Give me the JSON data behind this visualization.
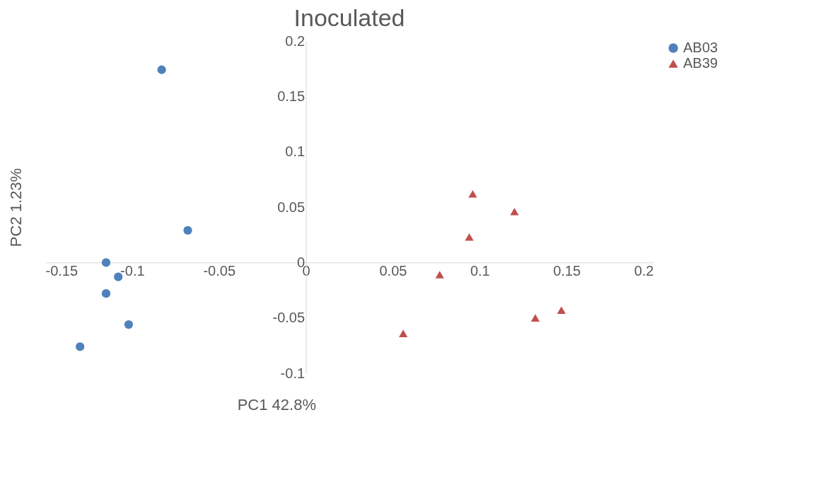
{
  "chart_data": {
    "type": "scatter",
    "title": "Inoculated",
    "xlabel": "PC1 42.8%",
    "ylabel": "PC2 1.23%",
    "xlim": [
      -0.15,
      0.2
    ],
    "ylim": [
      -0.1,
      0.2
    ],
    "xticks": [
      -0.15,
      -0.1,
      -0.05,
      0,
      0.05,
      0.1,
      0.15,
      0.2
    ],
    "yticks": [
      -0.1,
      -0.05,
      0,
      0.05,
      0.1,
      0.15,
      0.2
    ],
    "grid": false,
    "legend": "right",
    "series": [
      {
        "name": "AB03",
        "color": "#4f81bd",
        "marker": "circle",
        "x": [
          -0.083,
          -0.068,
          -0.115,
          -0.108,
          -0.115,
          -0.102,
          -0.13
        ],
        "values": [
          0.174,
          0.029,
          0.0,
          -0.013,
          -0.028,
          -0.056,
          -0.076
        ]
      },
      {
        "name": "AB39",
        "color": "#c0504d",
        "marker": "triangle",
        "x": [
          0.096,
          0.12,
          0.094,
          0.077,
          0.056,
          0.132,
          0.147
        ],
        "values": [
          0.062,
          0.046,
          0.023,
          -0.011,
          -0.064,
          -0.05,
          -0.043
        ]
      }
    ]
  }
}
